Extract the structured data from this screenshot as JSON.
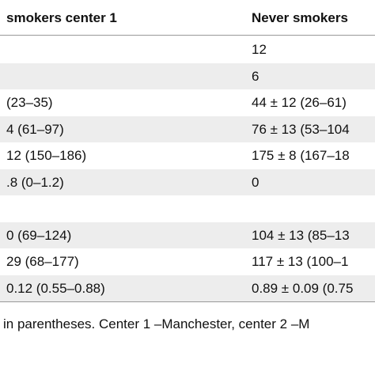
{
  "table": {
    "header": [
      "smokers center 1",
      "Never smokers"
    ],
    "rows": [
      [
        null,
        "12"
      ],
      [
        null,
        "6"
      ],
      [
        "(23–35)",
        "44 ± 12 (26–61)"
      ],
      [
        "4 (61–97)",
        "76 ± 13 (53–104"
      ],
      [
        "12 (150–186)",
        "175 ± 8 (167–18"
      ],
      [
        ".8 (0–1.2)",
        "0"
      ],
      [
        null,
        null
      ],
      [
        "0 (69–124)",
        "104 ± 13 (85–13"
      ],
      [
        "29 (68–177)",
        "117 ± 13 (100–1"
      ],
      [
        "0.12 (0.55–0.88)",
        "0.89 ± 0.09 (0.75"
      ]
    ]
  },
  "footnote": "in parentheses. Center 1 –Manchester, center 2 –M"
}
